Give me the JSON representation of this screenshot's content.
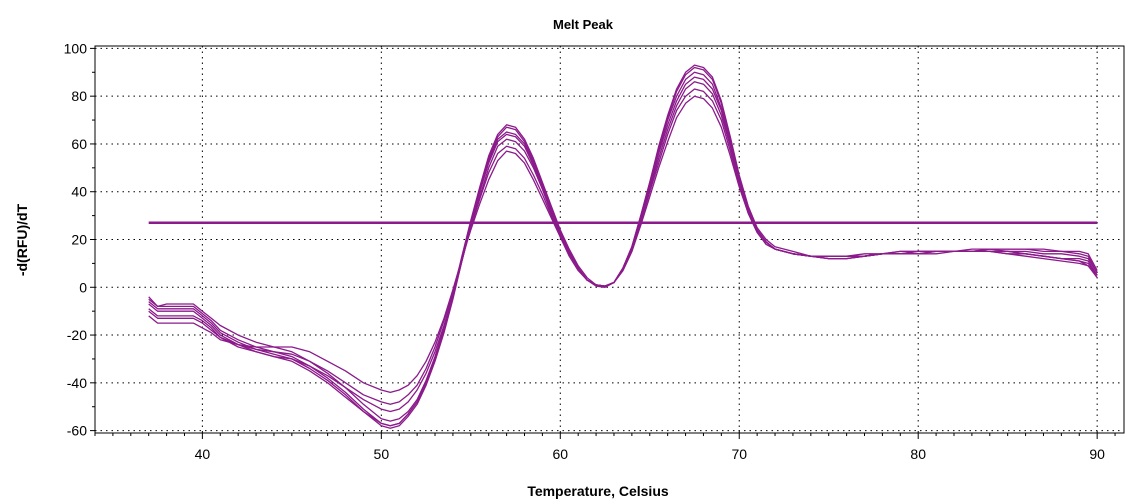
{
  "chart_data": {
    "type": "line",
    "title": "Melt Peak",
    "xlabel": "Temperature, Celsius",
    "ylabel": "-d(RFU)/dT",
    "xlim": [
      34,
      91.5
    ],
    "ylim": [
      -61,
      101
    ],
    "x_ticks": [
      40,
      50,
      60,
      70,
      80,
      90
    ],
    "y_ticks": [
      -60,
      -40,
      -20,
      0,
      20,
      40,
      60,
      80,
      100
    ],
    "grid": true,
    "grid_style": "dotted",
    "line_color": "#8b1a8b",
    "threshold": 27,
    "threshold_range": [
      37,
      90
    ],
    "x": [
      37,
      37.5,
      38,
      39,
      39.5,
      40,
      40.5,
      41,
      42,
      43,
      44,
      45,
      46,
      47,
      48,
      49,
      50,
      50.5,
      51,
      51.5,
      52,
      52.5,
      53,
      53.5,
      54,
      54.5,
      55,
      55.5,
      56,
      56.5,
      57,
      57.5,
      58,
      58.5,
      59,
      59.5,
      60,
      60.5,
      61,
      61.5,
      62,
      62.5,
      63,
      63.5,
      64,
      64.5,
      65,
      65.5,
      66,
      66.5,
      67,
      67.5,
      68,
      68.5,
      69,
      69.5,
      70,
      70.5,
      71,
      71.5,
      72,
      73,
      74,
      75,
      76,
      77,
      78,
      79,
      80,
      81,
      82,
      83,
      84,
      85,
      86,
      87,
      88,
      89,
      89.5,
      90
    ],
    "series": [
      {
        "values": [
          -4,
          -8,
          -7,
          -7,
          -7,
          -10,
          -13,
          -16,
          -20,
          -23,
          -25,
          -27,
          -31,
          -36,
          -42,
          -49,
          -55,
          -56,
          -55,
          -52,
          -47,
          -39,
          -29,
          -17,
          -3,
          13,
          28,
          42,
          55,
          64,
          68,
          67,
          62,
          54,
          44,
          34,
          24,
          16,
          9,
          4,
          1,
          0.5,
          2,
          8,
          17,
          30,
          44,
          59,
          72,
          83,
          90,
          93,
          92,
          88,
          78,
          63,
          47,
          34,
          25,
          20,
          17,
          15,
          13,
          12,
          12,
          13,
          14,
          14,
          15,
          15,
          15,
          15,
          15,
          14,
          13,
          12,
          11,
          10,
          9,
          4
        ]
      },
      {
        "values": [
          -5,
          -8,
          -8,
          -8,
          -8,
          -11,
          -14,
          -18,
          -22,
          -25,
          -27,
          -29,
          -33,
          -38,
          -44,
          -51,
          -57,
          -58,
          -57,
          -53,
          -48,
          -40,
          -30,
          -18,
          -4,
          12,
          27,
          41,
          54,
          63,
          67,
          66,
          61,
          53,
          43,
          33,
          23,
          15,
          8,
          3,
          0.5,
          0,
          2,
          8,
          17,
          30,
          44,
          58,
          71,
          82,
          89,
          92,
          91,
          87,
          77,
          62,
          46,
          33,
          24,
          19,
          16,
          14,
          13,
          12,
          12,
          13,
          14,
          15,
          15,
          15,
          15,
          16,
          16,
          15,
          14,
          13,
          12,
          11,
          10,
          5
        ]
      },
      {
        "values": [
          -6,
          -9,
          -9,
          -9,
          -9,
          -12,
          -15,
          -19,
          -23,
          -26,
          -28,
          -30,
          -34,
          -39,
          -45,
          -52,
          -58,
          -59,
          -58,
          -54,
          -49,
          -41,
          -31,
          -19,
          -5,
          11,
          26,
          40,
          53,
          62,
          65,
          64,
          60,
          52,
          43,
          33,
          23,
          15,
          8,
          3,
          1,
          0.5,
          2,
          8,
          17,
          29,
          43,
          57,
          70,
          80,
          87,
          90,
          89,
          85,
          75,
          61,
          46,
          33,
          24,
          19,
          16,
          14,
          13,
          12,
          12,
          13,
          14,
          14,
          15,
          15,
          15,
          15,
          15,
          15,
          14,
          13,
          12,
          11,
          9,
          5
        ]
      },
      {
        "values": [
          -7,
          -10,
          -10,
          -10,
          -10,
          -13,
          -16,
          -20,
          -24,
          -27,
          -29,
          -31,
          -35,
          -40,
          -46,
          -52,
          -57,
          -58,
          -57,
          -53,
          -48,
          -40,
          -30,
          -18,
          -4,
          11,
          26,
          40,
          52,
          61,
          64,
          63,
          59,
          51,
          42,
          32,
          22,
          14,
          8,
          3,
          1,
          0.5,
          2,
          8,
          16,
          29,
          42,
          56,
          68,
          78,
          85,
          88,
          87,
          83,
          74,
          60,
          45,
          32,
          24,
          19,
          16,
          14,
          13,
          13,
          13,
          13,
          14,
          15,
          15,
          15,
          15,
          15,
          15,
          14,
          14,
          13,
          12,
          12,
          11,
          5
        ]
      },
      {
        "values": [
          -9,
          -12,
          -12,
          -12,
          -12,
          -14,
          -17,
          -21,
          -25,
          -27,
          -29,
          -30,
          -33,
          -37,
          -42,
          -47,
          -51,
          -52,
          -51,
          -48,
          -43,
          -36,
          -27,
          -16,
          -3,
          11,
          25,
          38,
          50,
          59,
          62,
          61,
          57,
          50,
          41,
          31,
          22,
          14,
          8,
          3,
          1,
          0.5,
          2,
          8,
          16,
          28,
          41,
          54,
          66,
          76,
          83,
          86,
          85,
          81,
          72,
          59,
          44,
          32,
          24,
          19,
          16,
          14,
          13,
          13,
          13,
          13,
          14,
          14,
          14,
          15,
          15,
          15,
          15,
          15,
          15,
          14,
          14,
          13,
          12,
          6
        ]
      },
      {
        "values": [
          -10,
          -13,
          -13,
          -13,
          -13,
          -15,
          -18,
          -21,
          -24,
          -26,
          -27,
          -28,
          -31,
          -35,
          -40,
          -45,
          -48,
          -49,
          -48,
          -45,
          -41,
          -34,
          -25,
          -14,
          -2,
          12,
          25,
          37,
          48,
          56,
          59,
          58,
          54,
          47,
          39,
          30,
          21,
          14,
          8,
          3,
          1,
          0.5,
          2,
          7,
          15,
          27,
          40,
          52,
          64,
          74,
          80,
          83,
          82,
          78,
          70,
          57,
          43,
          31,
          23,
          18,
          16,
          14,
          13,
          13,
          13,
          13,
          14,
          14,
          14,
          14,
          15,
          15,
          16,
          16,
          16,
          15,
          15,
          14,
          13,
          6
        ]
      },
      {
        "values": [
          -12,
          -15,
          -15,
          -15,
          -15,
          -17,
          -19,
          -22,
          -24,
          -25,
          -25,
          -25,
          -27,
          -31,
          -35,
          -40,
          -43,
          -44,
          -43,
          -41,
          -37,
          -31,
          -23,
          -13,
          -1,
          12,
          24,
          35,
          45,
          53,
          57,
          56,
          52,
          45,
          37,
          29,
          21,
          13,
          7,
          3,
          1,
          0.5,
          2,
          7,
          15,
          26,
          38,
          50,
          61,
          71,
          77,
          80,
          79,
          75,
          67,
          55,
          42,
          31,
          23,
          18,
          16,
          14,
          13,
          13,
          13,
          14,
          14,
          14,
          14,
          15,
          15,
          15,
          16,
          16,
          16,
          16,
          15,
          15,
          14,
          7
        ]
      }
    ]
  }
}
